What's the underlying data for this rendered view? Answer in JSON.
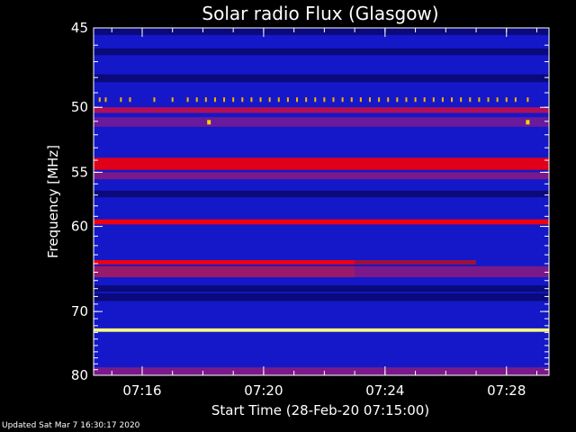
{
  "chart_data": {
    "type": "heatmap",
    "title": "Solar radio Flux (Glasgow)",
    "xlabel": "Start Time (28-Feb-20 07:15:00)",
    "ylabel": "Frequency [MHz]",
    "xlim_minutes_after_0715": [
      -0.6,
      14.4
    ],
    "ylim_mhz": [
      45,
      80
    ],
    "y_scale": "reciprocal",
    "y_ticks": [
      "45",
      "50",
      "55",
      "60",
      "70",
      "80"
    ],
    "y_tick_values": [
      45,
      50,
      55,
      60,
      70,
      80
    ],
    "x_ticks": [
      "07:16",
      "07:20",
      "07:24",
      "07:28"
    ],
    "x_tick_values": [
      "07:16",
      "07:20",
      "07:24",
      "07:28"
    ],
    "background_color": "#1418c8",
    "bands": [
      {
        "from_mhz": 45.0,
        "to_mhz": 45.4,
        "intensity": "low",
        "color": "#0a0a7a"
      },
      {
        "from_mhz": 46.2,
        "to_mhz": 46.6,
        "intensity": "low",
        "color": "#0a0a7a"
      },
      {
        "from_mhz": 47.8,
        "to_mhz": 48.3,
        "intensity": "low",
        "color": "#0a0a7a"
      },
      {
        "from_mhz": 50.0,
        "to_mhz": 50.4,
        "intensity": "medium",
        "color": "#b0105a"
      },
      {
        "from_mhz": 50.7,
        "to_mhz": 51.4,
        "intensity": "medium",
        "color": "#6a1a9a"
      },
      {
        "from_mhz": 53.8,
        "to_mhz": 54.8,
        "intensity": "high",
        "color": "#e0001a"
      },
      {
        "from_mhz": 55.0,
        "to_mhz": 55.6,
        "intensity": "medium",
        "color": "#7a1a8a"
      },
      {
        "from_mhz": 56.6,
        "to_mhz": 57.2,
        "intensity": "low",
        "color": "#0a0a7a"
      },
      {
        "from_mhz": 59.3,
        "to_mhz": 59.8,
        "intensity": "high",
        "color": "#f00010"
      },
      {
        "from_mhz": 64.3,
        "to_mhz": 65.6,
        "intensity": "medium",
        "color": "#7a1a8a"
      },
      {
        "from_mhz": 66.6,
        "to_mhz": 67.4,
        "intensity": "low",
        "color": "#0a0a7a"
      },
      {
        "from_mhz": 67.6,
        "to_mhz": 68.6,
        "intensity": "low",
        "color": "#0a0a7a"
      },
      {
        "from_mhz": 72.4,
        "to_mhz": 72.9,
        "intensity": "saturated",
        "color": "#ffff80"
      },
      {
        "from_mhz": 78.6,
        "to_mhz": 80.0,
        "intensity": "medium",
        "color": "#7a1a8a"
      }
    ],
    "partial_bands": [
      {
        "from_mhz": 63.6,
        "to_mhz": 64.1,
        "from_min": -0.6,
        "to_min": 8.0,
        "color": "#f00010"
      },
      {
        "from_mhz": 63.6,
        "to_mhz": 64.1,
        "from_min": 8.0,
        "to_min": 12.0,
        "color": "#a0103a"
      },
      {
        "from_mhz": 64.3,
        "to_mhz": 65.6,
        "from_min": -0.6,
        "to_min": 8.0,
        "color": "#9a1a6a"
      }
    ],
    "interference_spikes_mhz": 49.5,
    "interference_spike_times_min": [
      -0.4,
      -0.2,
      0.3,
      0.6,
      1.4,
      2.0,
      2.5,
      2.8,
      3.1,
      3.4,
      3.7,
      4.0,
      4.3,
      4.6,
      4.9,
      5.2,
      5.5,
      5.8,
      6.1,
      6.4,
      6.7,
      7.0,
      7.3,
      7.6,
      7.9,
      8.2,
      8.5,
      8.8,
      9.1,
      9.4,
      9.7,
      10.0,
      10.3,
      10.6,
      10.9,
      11.2,
      11.5,
      11.8,
      12.1,
      12.4,
      12.7,
      13.0,
      13.3,
      13.7
    ],
    "isolated_points": [
      {
        "time_min": 3.2,
        "freq_mhz": 51.1,
        "color": "#ffd000"
      },
      {
        "time_min": 13.7,
        "freq_mhz": 51.1,
        "color": "#ffd000"
      }
    ]
  },
  "footer": {
    "updated_text": "Updated Sat Mar  7 16:30:17 2020"
  }
}
